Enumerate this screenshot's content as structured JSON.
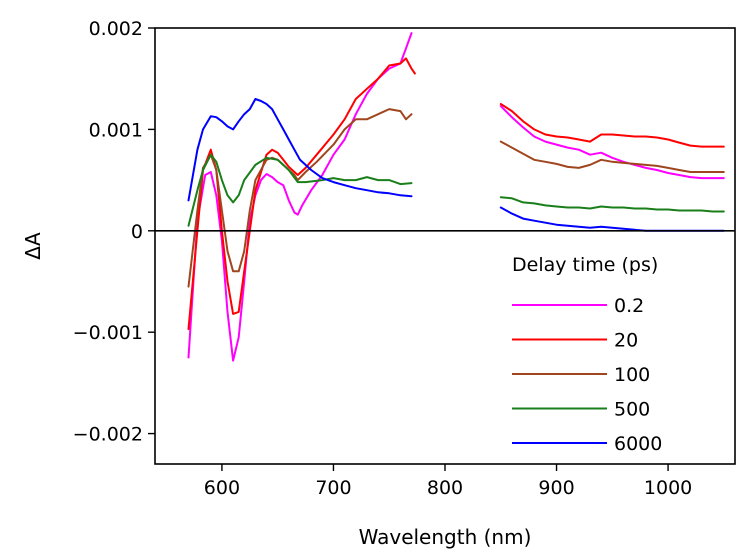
{
  "chart_data": {
    "type": "line",
    "xlabel": "Wavelength (nm)",
    "ylabel": "ΔA",
    "xlim": [
      540,
      1060
    ],
    "ylim": [
      -0.0023,
      0.002
    ],
    "x_ticks": [
      {
        "value": 600,
        "label": "600"
      },
      {
        "value": 700,
        "label": "700"
      },
      {
        "value": 800,
        "label": "800"
      },
      {
        "value": 900,
        "label": "900"
      },
      {
        "value": 1000,
        "label": "1000"
      }
    ],
    "y_ticks": [
      {
        "value": 0.002,
        "label": "0.002"
      },
      {
        "value": 0.001,
        "label": "0.001"
      },
      {
        "value": 0,
        "label": "0"
      },
      {
        "value": -0.001,
        "label": "−0.001"
      },
      {
        "value": -0.002,
        "label": "−0.002"
      }
    ],
    "zero_line": true,
    "grid": false,
    "legend": {
      "title": "Delay time (ps)",
      "position": "lower-right"
    },
    "series": [
      {
        "name": "0.2",
        "color": "#ff00ff",
        "segments": [
          [
            [
              570,
              -0.00125
            ],
            [
              578,
              0.0001
            ],
            [
              585,
              0.00055
            ],
            [
              590,
              0.00058
            ],
            [
              595,
              0.00035
            ],
            [
              600,
              -0.0001
            ],
            [
              605,
              -0.0008
            ],
            [
              610,
              -0.00128
            ],
            [
              615,
              -0.00105
            ],
            [
              620,
              -0.0005
            ],
            [
              625,
              0.0001
            ],
            [
              630,
              0.00035
            ],
            [
              635,
              0.0005
            ],
            [
              640,
              0.00056
            ],
            [
              645,
              0.00053
            ],
            [
              650,
              0.00048
            ],
            [
              655,
              0.00045
            ],
            [
              660,
              0.0003
            ],
            [
              665,
              0.00018
            ],
            [
              668,
              0.00016
            ],
            [
              672,
              0.00025
            ],
            [
              680,
              0.0004
            ],
            [
              690,
              0.00055
            ],
            [
              700,
              0.00075
            ],
            [
              710,
              0.0009
            ],
            [
              720,
              0.00115
            ],
            [
              730,
              0.00135
            ],
            [
              740,
              0.0015
            ],
            [
              750,
              0.0016
            ],
            [
              760,
              0.00165
            ],
            [
              765,
              0.0018
            ],
            [
              770,
              0.00195
            ]
          ],
          [
            [
              850,
              0.00123
            ],
            [
              860,
              0.00112
            ],
            [
              870,
              0.00102
            ],
            [
              880,
              0.00093
            ],
            [
              890,
              0.00088
            ],
            [
              900,
              0.00085
            ],
            [
              910,
              0.00082
            ],
            [
              920,
              0.0008
            ],
            [
              930,
              0.00075
            ],
            [
              940,
              0.00077
            ],
            [
              950,
              0.00072
            ],
            [
              960,
              0.00068
            ],
            [
              970,
              0.00065
            ],
            [
              980,
              0.00062
            ],
            [
              990,
              0.0006
            ],
            [
              1000,
              0.00057
            ],
            [
              1010,
              0.00055
            ],
            [
              1020,
              0.00053
            ],
            [
              1030,
              0.00052
            ],
            [
              1040,
              0.00052
            ],
            [
              1050,
              0.00052
            ]
          ]
        ]
      },
      {
        "name": "20",
        "color": "#ff0000",
        "segments": [
          [
            [
              570,
              -0.00097
            ],
            [
              578,
              0.0
            ],
            [
              583,
              0.0006
            ],
            [
              590,
              0.0008
            ],
            [
              595,
              0.0006
            ],
            [
              600,
              0.0
            ],
            [
              605,
              -0.0005
            ],
            [
              610,
              -0.00082
            ],
            [
              615,
              -0.0008
            ],
            [
              620,
              -0.0004
            ],
            [
              625,
              0.0
            ],
            [
              630,
              0.0004
            ],
            [
              640,
              0.00075
            ],
            [
              645,
              0.0008
            ],
            [
              650,
              0.00077
            ],
            [
              655,
              0.0007
            ],
            [
              660,
              0.00063
            ],
            [
              665,
              0.00058
            ],
            [
              668,
              0.00055
            ],
            [
              675,
              0.00062
            ],
            [
              685,
              0.00075
            ],
            [
              700,
              0.00095
            ],
            [
              710,
              0.0011
            ],
            [
              720,
              0.0013
            ],
            [
              730,
              0.0014
            ],
            [
              740,
              0.0015
            ],
            [
              750,
              0.00163
            ],
            [
              760,
              0.00165
            ],
            [
              765,
              0.0017
            ],
            [
              770,
              0.0016
            ],
            [
              773,
              0.00155
            ]
          ],
          [
            [
              850,
              0.00125
            ],
            [
              860,
              0.00118
            ],
            [
              870,
              0.00108
            ],
            [
              880,
              0.001
            ],
            [
              890,
              0.00095
            ],
            [
              900,
              0.00093
            ],
            [
              910,
              0.00092
            ],
            [
              920,
              0.0009
            ],
            [
              930,
              0.00088
            ],
            [
              940,
              0.00095
            ],
            [
              950,
              0.00095
            ],
            [
              960,
              0.00094
            ],
            [
              970,
              0.00093
            ],
            [
              980,
              0.00093
            ],
            [
              990,
              0.00092
            ],
            [
              1000,
              0.0009
            ],
            [
              1010,
              0.00087
            ],
            [
              1020,
              0.00084
            ],
            [
              1030,
              0.00083
            ],
            [
              1040,
              0.00083
            ],
            [
              1050,
              0.00083
            ]
          ]
        ]
      },
      {
        "name": "100",
        "color": "#a0461e",
        "segments": [
          [
            [
              570,
              -0.00055
            ],
            [
              578,
              0.0002
            ],
            [
              583,
              0.00062
            ],
            [
              590,
              0.00075
            ],
            [
              595,
              0.0006
            ],
            [
              600,
              0.0002
            ],
            [
              605,
              -0.0002
            ],
            [
              610,
              -0.0004
            ],
            [
              615,
              -0.0004
            ],
            [
              620,
              -0.0002
            ],
            [
              625,
              0.0002
            ],
            [
              630,
              0.0005
            ],
            [
              640,
              0.0007
            ],
            [
              645,
              0.00072
            ],
            [
              650,
              0.0007
            ],
            [
              655,
              0.00065
            ],
            [
              660,
              0.0006
            ],
            [
              665,
              0.00055
            ],
            [
              668,
              0.0005
            ],
            [
              675,
              0.00058
            ],
            [
              685,
              0.00068
            ],
            [
              700,
              0.00085
            ],
            [
              710,
              0.001
            ],
            [
              720,
              0.0011
            ],
            [
              730,
              0.0011
            ],
            [
              740,
              0.00115
            ],
            [
              750,
              0.0012
            ],
            [
              760,
              0.00118
            ],
            [
              765,
              0.0011
            ],
            [
              770,
              0.00115
            ]
          ],
          [
            [
              850,
              0.00088
            ],
            [
              860,
              0.00082
            ],
            [
              870,
              0.00076
            ],
            [
              880,
              0.0007
            ],
            [
              890,
              0.00068
            ],
            [
              900,
              0.00066
            ],
            [
              910,
              0.00063
            ],
            [
              920,
              0.00062
            ],
            [
              930,
              0.00065
            ],
            [
              940,
              0.0007
            ],
            [
              950,
              0.00068
            ],
            [
              960,
              0.00067
            ],
            [
              970,
              0.00066
            ],
            [
              980,
              0.00065
            ],
            [
              990,
              0.00064
            ],
            [
              1000,
              0.00062
            ],
            [
              1010,
              0.0006
            ],
            [
              1020,
              0.00058
            ],
            [
              1030,
              0.00058
            ],
            [
              1040,
              0.00058
            ],
            [
              1050,
              0.00058
            ]
          ]
        ]
      },
      {
        "name": "500",
        "color": "#1a7f1a",
        "segments": [
          [
            [
              570,
              5e-05
            ],
            [
              578,
              0.0004
            ],
            [
              583,
              0.0006
            ],
            [
              590,
              0.00075
            ],
            [
              595,
              0.00068
            ],
            [
              600,
              0.0005
            ],
            [
              605,
              0.00035
            ],
            [
              610,
              0.00028
            ],
            [
              615,
              0.00035
            ],
            [
              620,
              0.0005
            ],
            [
              630,
              0.00065
            ],
            [
              640,
              0.00072
            ],
            [
              650,
              0.0007
            ],
            [
              660,
              0.0006
            ],
            [
              668,
              0.00048
            ],
            [
              675,
              0.00048
            ],
            [
              690,
              0.0005
            ],
            [
              700,
              0.00052
            ],
            [
              710,
              0.0005
            ],
            [
              720,
              0.0005
            ],
            [
              730,
              0.00053
            ],
            [
              740,
              0.0005
            ],
            [
              750,
              0.0005
            ],
            [
              760,
              0.00046
            ],
            [
              770,
              0.00047
            ]
          ],
          [
            [
              850,
              0.00033
            ],
            [
              860,
              0.00032
            ],
            [
              870,
              0.00028
            ],
            [
              880,
              0.00027
            ],
            [
              890,
              0.00025
            ],
            [
              900,
              0.00024
            ],
            [
              910,
              0.00023
            ],
            [
              920,
              0.00023
            ],
            [
              930,
              0.00022
            ],
            [
              940,
              0.00024
            ],
            [
              950,
              0.00023
            ],
            [
              960,
              0.00023
            ],
            [
              970,
              0.00022
            ],
            [
              980,
              0.00022
            ],
            [
              990,
              0.00021
            ],
            [
              1000,
              0.00021
            ],
            [
              1010,
              0.0002
            ],
            [
              1020,
              0.0002
            ],
            [
              1030,
              0.0002
            ],
            [
              1040,
              0.00019
            ],
            [
              1050,
              0.00019
            ]
          ]
        ]
      },
      {
        "name": "6000",
        "color": "#0000ff",
        "segments": [
          [
            [
              570,
              0.0003
            ],
            [
              578,
              0.0008
            ],
            [
              583,
              0.001
            ],
            [
              590,
              0.00113
            ],
            [
              595,
              0.00112
            ],
            [
              600,
              0.00108
            ],
            [
              605,
              0.00103
            ],
            [
              610,
              0.001
            ],
            [
              615,
              0.00108
            ],
            [
              620,
              0.00115
            ],
            [
              625,
              0.0012
            ],
            [
              630,
              0.0013
            ],
            [
              635,
              0.00128
            ],
            [
              640,
              0.00125
            ],
            [
              645,
              0.0012
            ],
            [
              650,
              0.0011
            ],
            [
              655,
              0.001
            ],
            [
              660,
              0.0009
            ],
            [
              665,
              0.0008
            ],
            [
              670,
              0.0007
            ],
            [
              675,
              0.00065
            ],
            [
              680,
              0.0006
            ],
            [
              690,
              0.00052
            ],
            [
              700,
              0.00048
            ],
            [
              710,
              0.00045
            ],
            [
              720,
              0.00042
            ],
            [
              730,
              0.0004
            ],
            [
              740,
              0.00038
            ],
            [
              750,
              0.00037
            ],
            [
              760,
              0.00035
            ],
            [
              770,
              0.00034
            ]
          ],
          [
            [
              850,
              0.00023
            ],
            [
              860,
              0.00017
            ],
            [
              870,
              0.00012
            ],
            [
              880,
              0.0001
            ],
            [
              890,
              8e-05
            ],
            [
              900,
              6e-05
            ],
            [
              910,
              5e-05
            ],
            [
              920,
              4e-05
            ],
            [
              930,
              3e-05
            ],
            [
              940,
              4e-05
            ],
            [
              950,
              3e-05
            ],
            [
              960,
              2e-05
            ],
            [
              970,
              1e-05
            ],
            [
              980,
              0.0
            ],
            [
              990,
              0.0
            ],
            [
              1000,
              0.0
            ],
            [
              1010,
              0.0
            ],
            [
              1020,
              0.0
            ],
            [
              1030,
              0.0
            ],
            [
              1040,
              0.0
            ],
            [
              1050,
              0.0
            ]
          ]
        ]
      }
    ]
  }
}
